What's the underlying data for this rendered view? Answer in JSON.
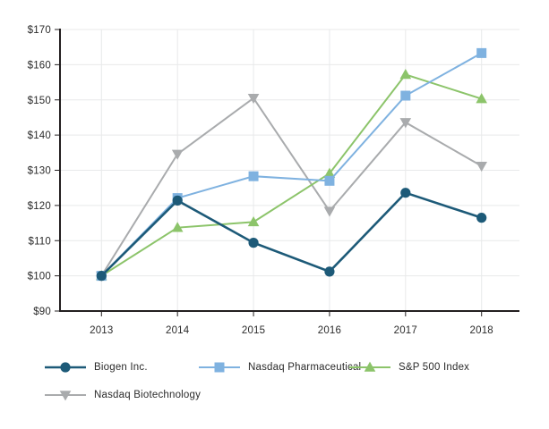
{
  "chart_data": {
    "type": "line",
    "title": "",
    "x_labels": [
      "2013",
      "2014",
      "2015",
      "2016",
      "2017",
      "2018"
    ],
    "series": [
      {
        "name": "Biogen Inc.",
        "marker": "circle",
        "color": "#1d5a78",
        "line_width": 2.6,
        "values": [
          100,
          121.4,
          109.4,
          101.2,
          123.6,
          116.5
        ]
      },
      {
        "name": "Nasdaq Pharmaceutical",
        "marker": "square",
        "color": "#7fb2e0",
        "line_width": 2,
        "values": [
          100,
          122.1,
          128.3,
          127.0,
          151.2,
          163.3
        ]
      },
      {
        "name": "S&P 500 Index",
        "marker": "triangle-up",
        "color": "#8cc46a",
        "line_width": 2,
        "values": [
          100,
          113.7,
          115.3,
          129.1,
          157.2,
          150.3
        ]
      },
      {
        "name": "Nasdaq Biotechnology",
        "marker": "triangle-down",
        "color": "#a9abad",
        "line_width": 2,
        "values": [
          100,
          134.6,
          150.5,
          118.4,
          143.6,
          131.2
        ]
      }
    ],
    "ylim": [
      90,
      170
    ],
    "ytick_step": 10,
    "ytick_prefix": "$",
    "grid": true,
    "legend_position": "bottom",
    "colors": {
      "axis": "#231f20",
      "grid": "#e8e9ea",
      "label": "#2b2b2b",
      "background": "#ffffff"
    }
  }
}
